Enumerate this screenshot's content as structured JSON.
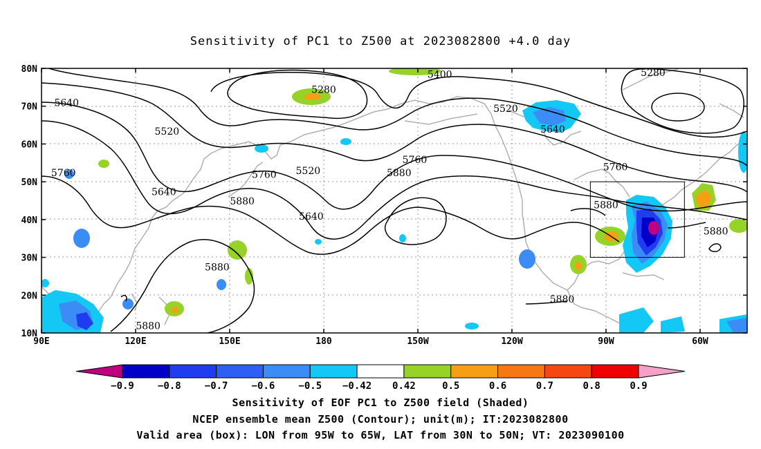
{
  "title": "Sensitivity of PC1 to Z500 at 2023082800 +4.0 day",
  "lat_ticks": [
    "80N",
    "70N",
    "60N",
    "50N",
    "40N",
    "30N",
    "20N",
    "10N"
  ],
  "lon_ticks": [
    "90E",
    "120E",
    "150E",
    "180",
    "150W",
    "120W",
    "90W",
    "60W"
  ],
  "contour_labels": [
    {
      "text": "5280",
      "lon": 180,
      "lat": 73.5
    },
    {
      "text": "5400",
      "lon": -143,
      "lat": 77.5
    },
    {
      "text": "5280",
      "lon": -75,
      "lat": 78
    },
    {
      "text": "5640",
      "lon": 98,
      "lat": 70
    },
    {
      "text": "5520",
      "lon": -122,
      "lat": 68.5
    },
    {
      "text": "5520",
      "lon": 130,
      "lat": 62.5
    },
    {
      "text": "5640",
      "lon": -107,
      "lat": 63
    },
    {
      "text": "5760",
      "lon": -151,
      "lat": 55
    },
    {
      "text": "5760",
      "lon": 97,
      "lat": 51.5
    },
    {
      "text": "5520",
      "lon": 175,
      "lat": 52
    },
    {
      "text": "5880",
      "lon": -156,
      "lat": 51.5
    },
    {
      "text": "5760",
      "lon": -87,
      "lat": 53
    },
    {
      "text": "5640",
      "lon": 129,
      "lat": 46.5
    },
    {
      "text": "5760",
      "lon": 161,
      "lat": 51
    },
    {
      "text": "5880",
      "lon": 154,
      "lat": 44
    },
    {
      "text": "5880",
      "lon": -90,
      "lat": 43
    },
    {
      "text": "5640",
      "lon": 176,
      "lat": 40
    },
    {
      "text": "5880",
      "lon": -55,
      "lat": 36
    },
    {
      "text": "5880",
      "lon": 146,
      "lat": 26.5
    },
    {
      "text": "5880",
      "lon": -104,
      "lat": 18
    },
    {
      "text": "5880",
      "lon": 124,
      "lat": 11
    }
  ],
  "valid_box": {
    "lon_west": -95,
    "lon_east": -65,
    "lat_south": 30,
    "lat_north": 50
  },
  "colorbar": {
    "labels": [
      "-0.9",
      "-0.8",
      "-0.7",
      "-0.6",
      "-0.5",
      "-0.42",
      "0.42",
      "0.5",
      "0.6",
      "0.7",
      "0.8",
      "0.9"
    ],
    "colors": [
      "#c0007f",
      "#0000c8",
      "#1f3cf0",
      "#2d5ff5",
      "#3c8cf5",
      "#14c8f5",
      "#ffffff",
      "#96d228",
      "#f5a014",
      "#f57814",
      "#f54614",
      "#f00000",
      "#f5a0c8"
    ]
  },
  "footer": {
    "line1": "Sensitivity of EOF PC1 to Z500 field (Shaded)",
    "line2": "NCEP ensemble mean Z500 (Contour); unit(m); IT:2023082800",
    "line3": "Valid area (box): LON from 95W to 65W, LAT from 30N to 50N; VT: 2023090100"
  }
}
